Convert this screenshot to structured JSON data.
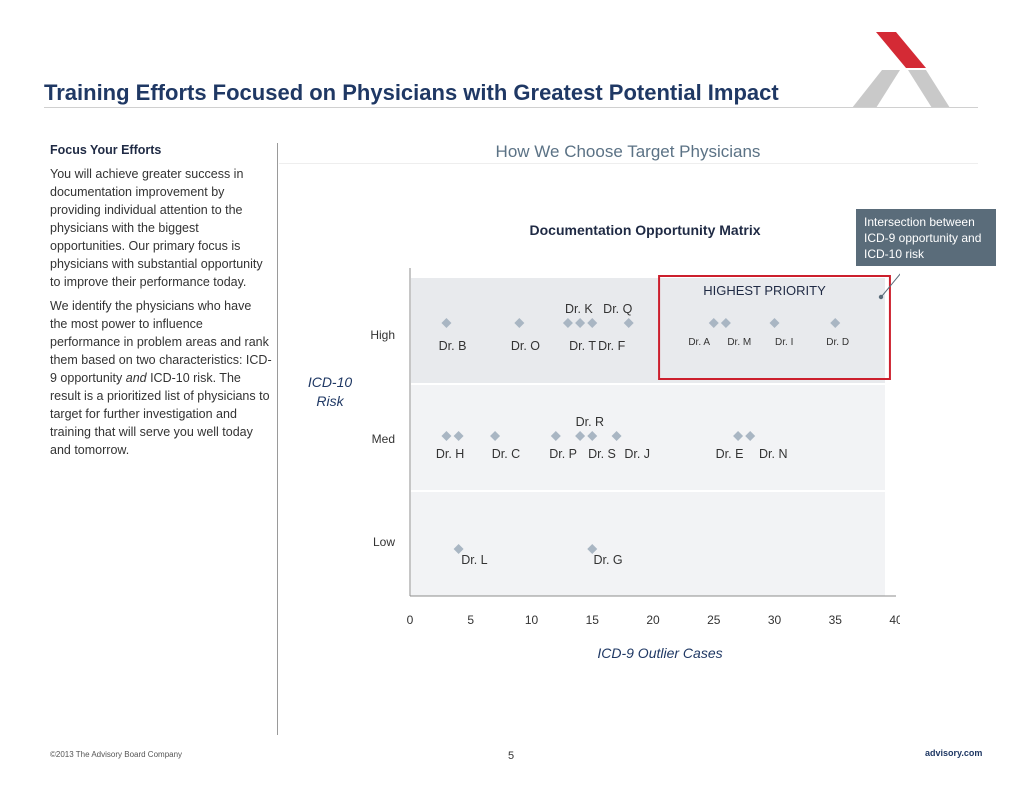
{
  "slide_title": "Training Efforts Focused on Physicians with Greatest Potential Impact",
  "left_column": {
    "heading": "Focus Your Efforts",
    "para1": "You will achieve greater success in documentation improvement by providing individual attention to the physicians with the biggest opportunities.  Our primary focus is physicians with substantial opportunity to improve their performance today.",
    "para2_a": "We identify the physicians who have the most power to influence performance in problem areas and rank them based on two characteristics: ICD-9 opportunity ",
    "para2_em": "and",
    "para2_b": " ICD-10 risk.  The result is a prioritized list of physicians to target for further investigation and training that will serve you well today and tomorrow."
  },
  "right_heading": "How We Choose Target Physicians",
  "callout": "Intersection between ICD-9 opportunity and ICD-10 risk",
  "footer": {
    "copyright": "©2013 The Advisory Board Company",
    "page": "5",
    "site": "advisory.com"
  },
  "colors": {
    "title": "#1f3864",
    "band_high": "#e8eaed",
    "band_other": "#f2f3f5",
    "marker": "#a9b6c3",
    "highlight": "#cc1f2d",
    "callout_bg": "#5a6c7a",
    "logo_red": "#d42a35",
    "logo_grey": "#c9c9c9"
  },
  "chart_data": {
    "type": "scatter",
    "title": "Documentation Opportunity Matrix",
    "xlabel": "ICD-9 Outlier Cases",
    "ylabel": "ICD-10 Risk",
    "xlim": [
      0,
      40
    ],
    "xticks": [
      0,
      5,
      10,
      15,
      20,
      25,
      30,
      35,
      40
    ],
    "y_categories": [
      "Low",
      "Med",
      "High"
    ],
    "highlight": {
      "label": "HIGHEST PRIORITY",
      "x_range": [
        20.5,
        39.5
      ],
      "y": "High"
    },
    "points": [
      {
        "x": 3,
        "y": "High"
      },
      {
        "x": 9,
        "y": "High"
      },
      {
        "x": 13,
        "y": "High"
      },
      {
        "x": 14,
        "y": "High"
      },
      {
        "x": 15,
        "y": "High"
      },
      {
        "x": 18,
        "y": "High"
      },
      {
        "x": 25,
        "y": "High"
      },
      {
        "x": 26,
        "y": "High"
      },
      {
        "x": 30,
        "y": "High"
      },
      {
        "x": 35,
        "y": "High"
      },
      {
        "x": 3,
        "y": "Med"
      },
      {
        "x": 4,
        "y": "Med"
      },
      {
        "x": 7,
        "y": "Med"
      },
      {
        "x": 12,
        "y": "Med"
      },
      {
        "x": 14,
        "y": "Med"
      },
      {
        "x": 15,
        "y": "Med"
      },
      {
        "x": 17,
        "y": "Med"
      },
      {
        "x": 27,
        "y": "Med"
      },
      {
        "x": 28,
        "y": "Med"
      },
      {
        "x": 4,
        "y": "Low"
      },
      {
        "x": 15,
        "y": "Low"
      }
    ],
    "labels": [
      {
        "text": "Dr. K",
        "x": 13.9,
        "y": "High",
        "pos": "above",
        "size": "normal"
      },
      {
        "text": "Dr. Q",
        "x": 17.1,
        "y": "High",
        "pos": "above",
        "size": "normal"
      },
      {
        "text": "Dr. B",
        "x": 3.5,
        "y": "High",
        "pos": "below",
        "size": "normal"
      },
      {
        "text": "Dr. O",
        "x": 9.5,
        "y": "High",
        "pos": "below",
        "size": "normal"
      },
      {
        "text": "Dr. T",
        "x": 14.2,
        "y": "High",
        "pos": "below",
        "size": "normal"
      },
      {
        "text": "Dr. F",
        "x": 16.6,
        "y": "High",
        "pos": "below",
        "size": "normal"
      },
      {
        "text": "Dr. A",
        "x": 23.8,
        "y": "High",
        "pos": "below",
        "size": "small"
      },
      {
        "text": "Dr. M",
        "x": 27.1,
        "y": "High",
        "pos": "below",
        "size": "small"
      },
      {
        "text": "Dr. I",
        "x": 30.8,
        "y": "High",
        "pos": "below",
        "size": "small"
      },
      {
        "text": "Dr. D",
        "x": 35.2,
        "y": "High",
        "pos": "below",
        "size": "small"
      },
      {
        "text": "Dr. R",
        "x": 14.8,
        "y": "Med",
        "pos": "above",
        "size": "normal"
      },
      {
        "text": "Dr. H",
        "x": 3.3,
        "y": "Med",
        "pos": "below",
        "size": "normal"
      },
      {
        "text": "Dr. C",
        "x": 7.9,
        "y": "Med",
        "pos": "below",
        "size": "normal"
      },
      {
        "text": "Dr. P",
        "x": 12.6,
        "y": "Med",
        "pos": "below",
        "size": "normal"
      },
      {
        "text": "Dr. S",
        "x": 15.8,
        "y": "Med",
        "pos": "below",
        "size": "normal"
      },
      {
        "text": "Dr. J",
        "x": 18.7,
        "y": "Med",
        "pos": "below",
        "size": "normal"
      },
      {
        "text": "Dr. E",
        "x": 26.3,
        "y": "Med",
        "pos": "below",
        "size": "normal"
      },
      {
        "text": "Dr. N",
        "x": 29.9,
        "y": "Med",
        "pos": "below",
        "size": "normal"
      },
      {
        "text": "Dr. L",
        "x": 5.3,
        "y": "Low",
        "pos": "below",
        "size": "normal"
      },
      {
        "text": "Dr. G",
        "x": 16.3,
        "y": "Low",
        "pos": "below",
        "size": "normal"
      }
    ]
  }
}
